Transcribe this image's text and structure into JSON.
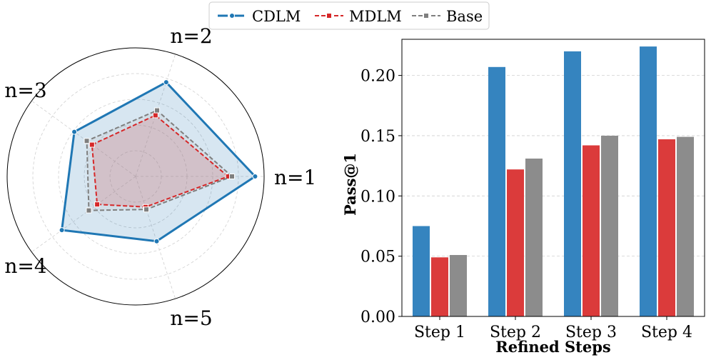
{
  "legend": {
    "items": [
      {
        "name": "CDLM",
        "color": "#1f77b4",
        "dash": "line-dot"
      },
      {
        "name": "MDLM",
        "color": "#d62728",
        "dash": "dashed"
      },
      {
        "name": "Base",
        "color": "#7f7f7f",
        "dash": "dashed"
      }
    ]
  },
  "chart_data": [
    {
      "type": "radar",
      "axes": [
        "n=1",
        "n=2",
        "n=3",
        "n=4",
        "n=5"
      ],
      "rmax": 1.0,
      "grid": true,
      "series": [
        {
          "name": "CDLM",
          "color": "#1f77b4",
          "values": [
            0.93,
            0.77,
            0.59,
            0.71,
            0.53
          ],
          "fill": "#1f77b4"
        },
        {
          "name": "MDLM",
          "color": "#d62728",
          "values": [
            0.72,
            0.5,
            0.42,
            0.37,
            0.25
          ],
          "fill": "#d62728"
        },
        {
          "name": "Base",
          "color": "#7f7f7f",
          "values": [
            0.75,
            0.54,
            0.47,
            0.45,
            0.27
          ],
          "fill": "#bfbfbf"
        }
      ]
    },
    {
      "type": "bar",
      "categories": [
        "Step 1",
        "Step 2",
        "Step 3",
        "Step 4"
      ],
      "series": [
        {
          "name": "CDLM",
          "color": "#3584bf",
          "values": [
            0.075,
            0.207,
            0.22,
            0.224
          ]
        },
        {
          "name": "MDLM",
          "color": "#db3b3b",
          "values": [
            0.049,
            0.122,
            0.142,
            0.147
          ]
        },
        {
          "name": "Base",
          "color": "#8c8c8c",
          "values": [
            0.051,
            0.131,
            0.15,
            0.149
          ]
        }
      ],
      "xlabel": "Refined Steps",
      "ylabel": "Pass@1",
      "ylim": [
        0,
        0.23
      ],
      "yticks": [
        "0.00",
        "0.05",
        "0.10",
        "0.15",
        "0.20"
      ],
      "ytick_values": [
        0,
        0.05,
        0.1,
        0.15,
        0.2
      ],
      "grid": true
    }
  ]
}
